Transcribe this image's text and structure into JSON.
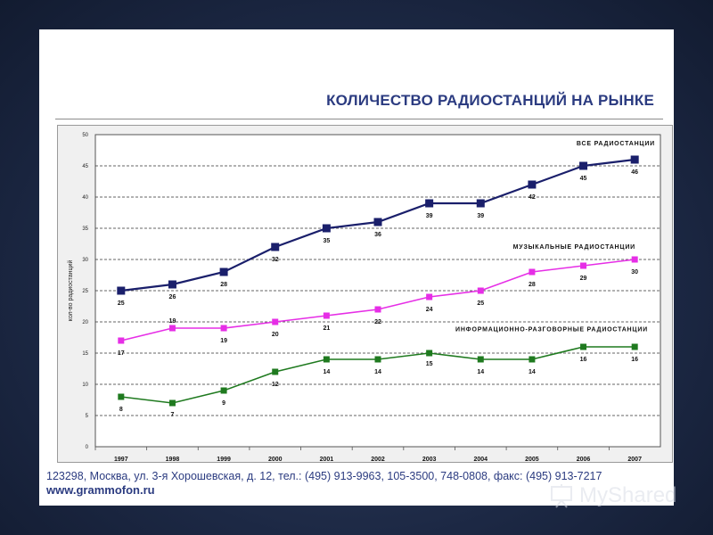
{
  "slide": {
    "title": "КОЛИЧЕСТВО РАДИОСТАНЦИЙ НА РЫНКЕ",
    "footer_address": "123298, Москва, ул. 3-я Хорошевская, д. 12, тел.: (495) 913-9963, 105-3500, 748-0808, факс: (495) 913-7217",
    "footer_site": "www.grammofon.ru"
  },
  "watermark": {
    "text": "MyShared",
    "icon": "slideshow-logo-icon"
  },
  "chart_data": {
    "type": "line",
    "title": "",
    "xlabel": "",
    "ylabel": "кол-во радиостанций",
    "ylim": [
      0,
      50
    ],
    "yticks": [
      0,
      5,
      10,
      15,
      20,
      25,
      30,
      35,
      40,
      45,
      50
    ],
    "grid": "horizontal-dashed",
    "categories": [
      "1997",
      "1998",
      "1999",
      "2000",
      "2001",
      "2002",
      "2003",
      "2004",
      "2005",
      "2006",
      "2007"
    ],
    "series": [
      {
        "name": "ВСЕ РАДИОСТАНЦИИ",
        "color": "#1a1f6b",
        "values": [
          25,
          26,
          28,
          32,
          35,
          36,
          39,
          39,
          42,
          45,
          46
        ]
      },
      {
        "name": "МУЗЫКАЛЬНЫЕ РАДИОСТАНЦИИ",
        "color": "#e62ee6",
        "values": [
          17,
          19,
          19,
          20,
          21,
          22,
          24,
          25,
          28,
          29,
          30
        ]
      },
      {
        "name": "ИНФОРМАЦИОННО-РАЗГОВОРНЫЕ РАДИОСТАНЦИИ",
        "color": "#1f7a1f",
        "values": [
          8,
          7,
          9,
          12,
          14,
          14,
          15,
          14,
          14,
          16,
          16
        ]
      }
    ]
  }
}
